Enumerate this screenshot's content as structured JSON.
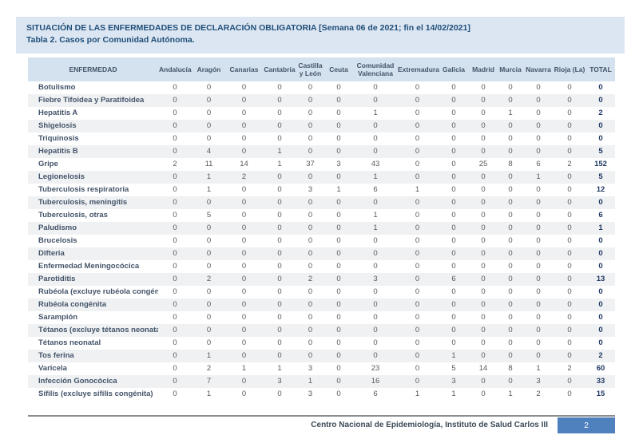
{
  "title": {
    "line1": "SITUACIÓN DE LAS ENFERMEDADES DE DECLARACIÓN OBLIGATORIA  [Semana 06 de 2021; fin el 14/02/2021]",
    "line2": "Tabla 2. Casos por Comunidad Autónoma."
  },
  "table": {
    "columns": [
      "ENFERMEDAD",
      "Andalucía",
      "Aragón",
      "Canarias",
      "Cantabria",
      "Castilla y León",
      "Ceuta",
      "Comunidad Valenciana",
      "Extremadura",
      "Galicia",
      "Madrid",
      "Murcia",
      "Navarra",
      "Rioja (La)",
      "TOTAL"
    ],
    "rows": [
      {
        "disease": "Botulismo",
        "values": [
          0,
          0,
          0,
          0,
          0,
          0,
          0,
          0,
          0,
          0,
          0,
          0,
          0
        ],
        "total": 0
      },
      {
        "disease": "Fiebre Tifoidea y Paratifoidea",
        "values": [
          0,
          0,
          0,
          0,
          0,
          0,
          0,
          0,
          0,
          0,
          0,
          0,
          0
        ],
        "total": 0
      },
      {
        "disease": "Hepatitis A",
        "values": [
          0,
          0,
          0,
          0,
          0,
          0,
          1,
          0,
          0,
          0,
          1,
          0,
          0
        ],
        "total": 2
      },
      {
        "disease": "Shigelosis",
        "values": [
          0,
          0,
          0,
          0,
          0,
          0,
          0,
          0,
          0,
          0,
          0,
          0,
          0
        ],
        "total": 0
      },
      {
        "disease": "Triquinosis",
        "values": [
          0,
          0,
          0,
          0,
          0,
          0,
          0,
          0,
          0,
          0,
          0,
          0,
          0
        ],
        "total": 0
      },
      {
        "disease": "Hepatitis B",
        "values": [
          0,
          4,
          0,
          1,
          0,
          0,
          0,
          0,
          0,
          0,
          0,
          0,
          0
        ],
        "total": 5
      },
      {
        "disease": "Gripe",
        "values": [
          2,
          11,
          14,
          1,
          37,
          3,
          43,
          0,
          0,
          25,
          8,
          6,
          2
        ],
        "total": 152
      },
      {
        "disease": "Legionelosis",
        "values": [
          0,
          1,
          2,
          0,
          0,
          0,
          1,
          0,
          0,
          0,
          0,
          1,
          0
        ],
        "total": 5
      },
      {
        "disease": "Tuberculosis respiratoria",
        "values": [
          0,
          1,
          0,
          0,
          3,
          1,
          6,
          1,
          0,
          0,
          0,
          0,
          0
        ],
        "total": 12
      },
      {
        "disease": "Tuberculosis, meningitis",
        "values": [
          0,
          0,
          0,
          0,
          0,
          0,
          0,
          0,
          0,
          0,
          0,
          0,
          0
        ],
        "total": 0
      },
      {
        "disease": "Tuberculosis, otras",
        "values": [
          0,
          5,
          0,
          0,
          0,
          0,
          1,
          0,
          0,
          0,
          0,
          0,
          0
        ],
        "total": 6
      },
      {
        "disease": "Paludismo",
        "values": [
          0,
          0,
          0,
          0,
          0,
          0,
          1,
          0,
          0,
          0,
          0,
          0,
          0
        ],
        "total": 1
      },
      {
        "disease": "Brucelosis",
        "values": [
          0,
          0,
          0,
          0,
          0,
          0,
          0,
          0,
          0,
          0,
          0,
          0,
          0
        ],
        "total": 0
      },
      {
        "disease": "Difteria",
        "values": [
          0,
          0,
          0,
          0,
          0,
          0,
          0,
          0,
          0,
          0,
          0,
          0,
          0
        ],
        "total": 0
      },
      {
        "disease": "Enfermedad Meningocócica",
        "values": [
          0,
          0,
          0,
          0,
          0,
          0,
          0,
          0,
          0,
          0,
          0,
          0,
          0
        ],
        "total": 0
      },
      {
        "disease": "Parotiditis",
        "values": [
          0,
          2,
          0,
          0,
          2,
          0,
          3,
          0,
          6,
          0,
          0,
          0,
          0
        ],
        "total": 13
      },
      {
        "disease": "Rubéola (excluye rubéola congénita)",
        "values": [
          0,
          0,
          0,
          0,
          0,
          0,
          0,
          0,
          0,
          0,
          0,
          0,
          0
        ],
        "total": 0
      },
      {
        "disease": "Rubéola congénita",
        "values": [
          0,
          0,
          0,
          0,
          0,
          0,
          0,
          0,
          0,
          0,
          0,
          0,
          0
        ],
        "total": 0
      },
      {
        "disease": "Sarampión",
        "values": [
          0,
          0,
          0,
          0,
          0,
          0,
          0,
          0,
          0,
          0,
          0,
          0,
          0
        ],
        "total": 0
      },
      {
        "disease": "Tétanos (excluye tétanos neonatal)",
        "values": [
          0,
          0,
          0,
          0,
          0,
          0,
          0,
          0,
          0,
          0,
          0,
          0,
          0
        ],
        "total": 0
      },
      {
        "disease": "Tétanos neonatal",
        "values": [
          0,
          0,
          0,
          0,
          0,
          0,
          0,
          0,
          0,
          0,
          0,
          0,
          0
        ],
        "total": 0
      },
      {
        "disease": "Tos ferina",
        "values": [
          0,
          1,
          0,
          0,
          0,
          0,
          0,
          0,
          1,
          0,
          0,
          0,
          0
        ],
        "total": 2
      },
      {
        "disease": "Varicela",
        "values": [
          0,
          2,
          1,
          1,
          3,
          0,
          23,
          0,
          5,
          14,
          8,
          1,
          2
        ],
        "total": 60
      },
      {
        "disease": "Infección Gonocócica",
        "values": [
          0,
          7,
          0,
          3,
          1,
          0,
          16,
          0,
          3,
          0,
          0,
          3,
          0
        ],
        "total": 33
      },
      {
        "disease": "Sífilis (excluye sífilis congénita)",
        "values": [
          0,
          1,
          0,
          0,
          3,
          0,
          6,
          1,
          1,
          0,
          1,
          2,
          0
        ],
        "total": 15
      }
    ]
  },
  "footer": {
    "source": "Centro Nacional de Epidemiología, Instituto de Salud Carlos III",
    "page": "2"
  },
  "colors": {
    "title_text": "#1f4e79",
    "band_bg": "#dce6f2",
    "table_header_bg": "#d3e2ee",
    "row_stripe": "#eff1f3",
    "page_box": "#4e81bd"
  }
}
